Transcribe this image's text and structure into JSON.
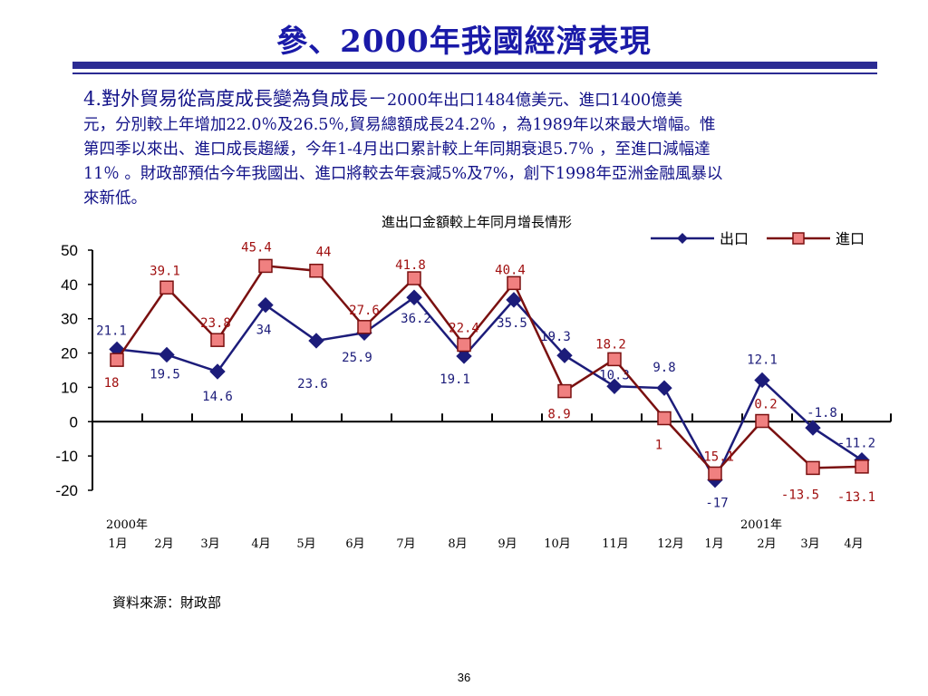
{
  "page": {
    "title": "參、2000年我國經濟表現",
    "paragraph_lead": "4.對外貿易從高度成長變為負成長－",
    "paragraph_lines": [
      "2000年出口1484億美元、進口1400億美",
      "元，分別較上年增加22.0％及26.5％,貿易總額成長24.2％ ，為1989年以來最大增幅。惟",
      "第四季以來出、進口成長趨緩，今年1-4月出口累計較上年同期衰退5.7％ ，至進口減幅達",
      "11％ 。財政部預估今年我國出、進口將較去年衰減5%及7%，創下1998年亞洲金融風暴以",
      "來新低。"
    ],
    "source": "資料來源：財政部",
    "page_number": "36"
  },
  "chart_data": {
    "type": "line",
    "title": "進出口金額較上年同月增長情形",
    "categories": [
      "1月",
      "2月",
      "3月",
      "4月",
      "5月",
      "6月",
      "7月",
      "8月",
      "9月",
      "10月",
      "11月",
      "12月",
      "1月",
      "2月",
      "3月",
      "4月"
    ],
    "year_labels": [
      {
        "label": "2000年",
        "at_index": 0
      },
      {
        "label": "2001年",
        "at_index": 13
      }
    ],
    "ylim": [
      -20,
      50
    ],
    "yticks": [
      50,
      40,
      30,
      20,
      10,
      0,
      -10,
      -20
    ],
    "legend_position": "top-right",
    "series": [
      {
        "name": "出口",
        "color": "#1c1c7a",
        "marker": "diamond",
        "label_color": "#1c1c7a",
        "values": [
          21.1,
          19.5,
          14.6,
          34,
          23.6,
          25.9,
          36.2,
          19.1,
          35.5,
          19.3,
          10.3,
          9.8,
          -17,
          12.1,
          -1.8,
          -11.2
        ],
        "labels": [
          "21.1",
          "19.5",
          "14.6",
          "34",
          "23.6",
          "25.9",
          "36.2",
          "19.1",
          "35.5",
          "19.3",
          "10.3",
          "9.8",
          "-17",
          "12.1",
          "-1.8",
          "-11.2"
        ]
      },
      {
        "name": "進口",
        "color": "#7a1010",
        "marker": "square",
        "marker_fill": "#f08080",
        "label_color": "#a01010",
        "values": [
          18,
          39.1,
          23.8,
          45.4,
          44,
          27.6,
          41.8,
          22.4,
          40.4,
          8.9,
          18.2,
          1,
          -15.1,
          0.2,
          -13.5,
          -13.1
        ],
        "labels": [
          "18",
          "39.1",
          "23.8",
          "45.4",
          "44",
          "27.6",
          "41.8",
          "22.4",
          "40.4",
          "8.9",
          "18.2",
          "1",
          "-15.1",
          "0.2",
          "-13.5",
          "-13.1"
        ]
      }
    ]
  }
}
